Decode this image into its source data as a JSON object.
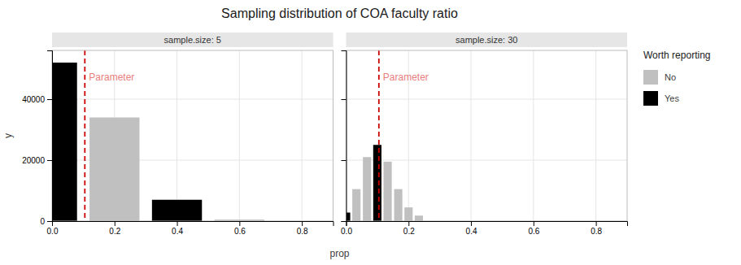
{
  "title": "Sampling distribution of COA faculty ratio",
  "chart_data": [
    {
      "type": "bar",
      "title": "sample.size: 5",
      "x_label": "prop",
      "y_label": "y",
      "x": [
        0.0,
        0.2,
        0.4,
        0.6
      ],
      "series": [
        {
          "name": "No",
          "color": "#C0C0C0",
          "values": [
            null,
            34000,
            null,
            500
          ]
        },
        {
          "name": "Yes",
          "color": "#000000",
          "values": [
            52000,
            null,
            7000,
            null
          ]
        }
      ],
      "xlim": [
        0.0,
        0.9
      ],
      "xticks": [
        {
          "value": 0.0,
          "label": "0.0"
        },
        {
          "value": 0.2,
          "label": "0.2"
        },
        {
          "value": 0.4,
          "label": "0.4"
        },
        {
          "value": 0.6,
          "label": "0.6"
        },
        {
          "value": 0.8,
          "label": "0.8"
        }
      ],
      "ylim": [
        0,
        56000
      ],
      "yticks": [
        0,
        20000,
        40000
      ],
      "grid": true,
      "annotations": [
        {
          "x": 0.105,
          "label": "Parameter",
          "color": "#CC0000",
          "label_color": "#E88080"
        }
      ]
    },
    {
      "type": "bar",
      "title": "sample.size: 30",
      "x": [
        0.0,
        0.033,
        0.067,
        0.1,
        0.133,
        0.167,
        0.2,
        0.233
      ],
      "series": [
        {
          "name": "No",
          "color": "#C0C0C0",
          "values": [
            null,
            10500,
            21000,
            null,
            19500,
            10500,
            4500,
            1800
          ]
        },
        {
          "name": "Yes",
          "color": "#000000",
          "values": [
            2800,
            null,
            null,
            25000,
            null,
            null,
            null,
            null
          ]
        }
      ],
      "xlim": [
        0.0,
        0.9
      ],
      "xticks": [
        {
          "value": 0.0,
          "label": "0.0"
        },
        {
          "value": 0.2,
          "label": "0.2"
        },
        {
          "value": 0.4,
          "label": "0.4"
        },
        {
          "value": 0.6,
          "label": "0.6"
        },
        {
          "value": 0.8,
          "label": "0.8"
        }
      ],
      "ylim": [
        0,
        56000
      ],
      "yticks": [
        0,
        20000,
        40000
      ],
      "grid": true,
      "tick_labels": "x",
      "legend": "right",
      "legend_title": "Worth reporting",
      "annotations": [
        {
          "x": 0.105,
          "label": "Parameter",
          "color": "#CC0000",
          "label_color": "#E88080"
        }
      ]
    }
  ]
}
